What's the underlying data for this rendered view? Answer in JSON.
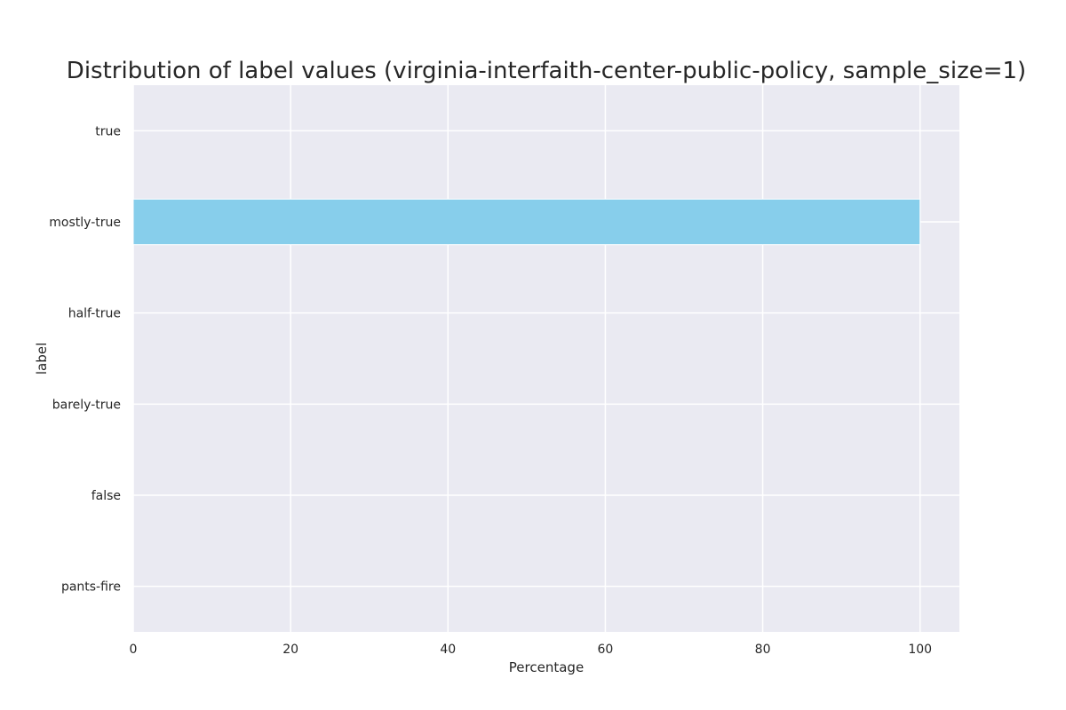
{
  "chart_data": {
    "type": "bar",
    "orientation": "horizontal",
    "title": "Distribution of label values (virginia-interfaith-center-public-policy, sample_size=1)",
    "xlabel": "Percentage",
    "ylabel": "label",
    "categories": [
      "true",
      "mostly-true",
      "half-true",
      "barely-true",
      "false",
      "pants-fire"
    ],
    "values": [
      0,
      100,
      0,
      0,
      0,
      0
    ],
    "xlim": [
      0,
      105
    ],
    "xticks": [
      "0",
      "20",
      "40",
      "60",
      "80",
      "100"
    ],
    "grid": true,
    "legend": "none",
    "colors": {
      "bar": "#87ceeb",
      "plot_background": "#eaeaf2",
      "grid": "#ffffff",
      "text": "#262626"
    }
  }
}
